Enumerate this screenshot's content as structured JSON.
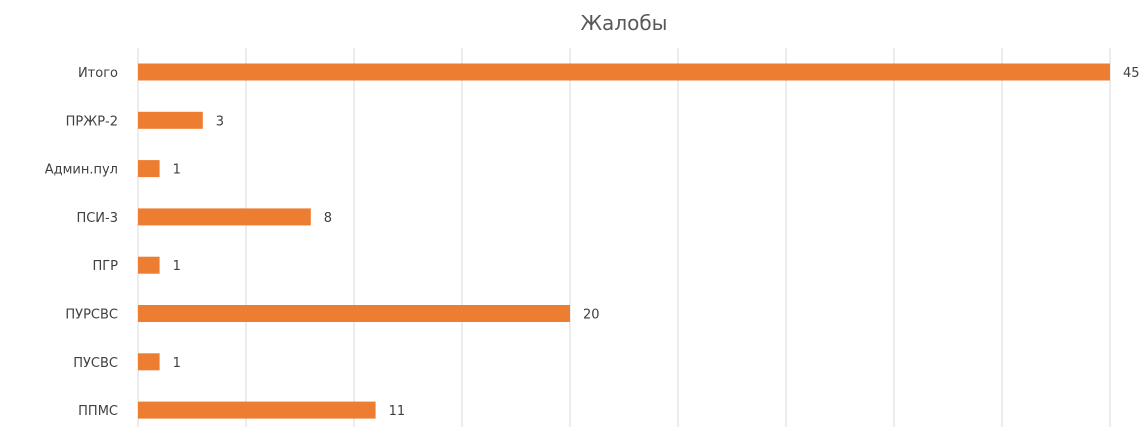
{
  "chart_data": {
    "type": "bar",
    "orientation": "horizontal",
    "title": "Жалобы",
    "categories": [
      "Итого",
      "ПРЖР-2",
      "Админ.пул",
      "ПСИ-3",
      "ПГР",
      "ПУРСВС",
      "ПУСВС",
      "ППМС"
    ],
    "values": [
      45,
      3,
      1,
      8,
      1,
      20,
      1,
      11
    ],
    "xlim": [
      0,
      45
    ],
    "x_grid_step": 5,
    "grid": true,
    "data_labels": true,
    "legend": "none",
    "bar_color": "#ED7D31",
    "gridline_color": "#d9d9d9"
  }
}
